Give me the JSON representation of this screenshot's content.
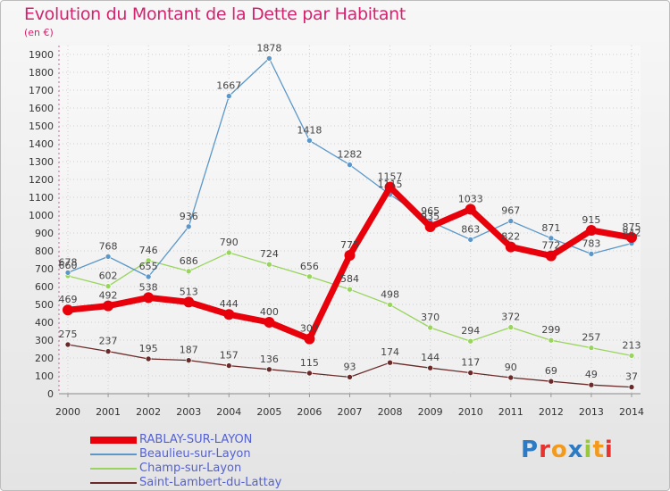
{
  "header": {
    "title": "Evolution du Montant de la Dette par Habitant",
    "unit": "(en €)"
  },
  "logo": {
    "text": "Proxiti"
  },
  "chart_data": {
    "type": "line",
    "title": "Evolution du Montant de la Dette par Habitant",
    "ylabel": "(en €)",
    "xlabel": "",
    "x": [
      "2000",
      "2001",
      "2002",
      "2003",
      "2004",
      "2005",
      "2006",
      "2007",
      "2008",
      "2009",
      "2010",
      "2011",
      "2012",
      "2013",
      "2014"
    ],
    "ylim": [
      0,
      1900
    ],
    "yticks": [
      0,
      100,
      200,
      300,
      400,
      500,
      600,
      700,
      800,
      900,
      1000,
      1100,
      1200,
      1300,
      1400,
      1500,
      1600,
      1700,
      1800,
      1900
    ],
    "grid": true,
    "legend_position": "bottom-left",
    "series": [
      {
        "name": "RABLAY-SUR-LAYON",
        "color": "#e8000b",
        "values": [
          469,
          492,
          538,
          513,
          444,
          400,
          307,
          775,
          1157,
          935,
          1033,
          822,
          772,
          915,
          875
        ]
      },
      {
        "name": "Beaulieu-sur-Layon",
        "color": "#5b97c9",
        "values": [
          678,
          768,
          655,
          936,
          1667,
          1878,
          1418,
          1282,
          1115,
          965,
          863,
          967,
          871,
          783,
          842
        ]
      },
      {
        "name": "Champ-sur-Layon",
        "color": "#99d45e",
        "values": [
          660,
          602,
          746,
          686,
          790,
          724,
          656,
          584,
          498,
          370,
          294,
          372,
          299,
          257,
          213
        ]
      },
      {
        "name": "Saint-Lambert-du-Lattay",
        "color": "#6b2a2a",
        "values": [
          275,
          237,
          195,
          187,
          157,
          136,
          115,
          93,
          174,
          144,
          117,
          90,
          69,
          49,
          37
        ]
      }
    ]
  }
}
